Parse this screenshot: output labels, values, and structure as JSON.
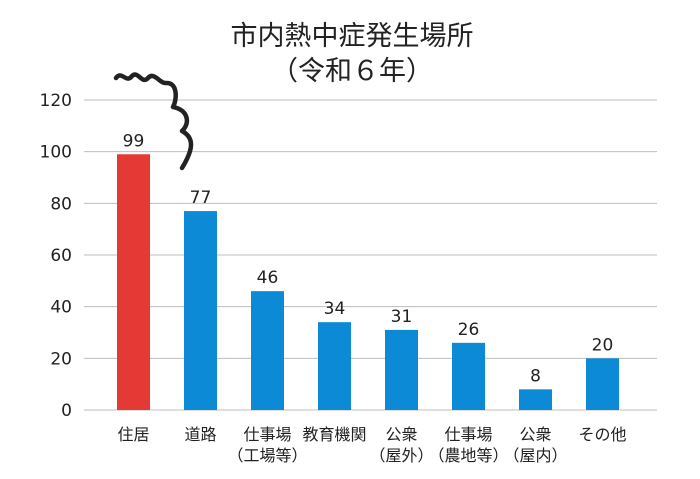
{
  "chart_data": {
    "type": "bar",
    "title": "市内熱中症発生場所",
    "subtitle": "（令和６年）",
    "categories": [
      [
        "住居"
      ],
      [
        "道路"
      ],
      [
        "仕事場",
        "（工場等）"
      ],
      [
        "教育機関"
      ],
      [
        "公衆",
        "（屋外）"
      ],
      [
        "仕事場",
        "（農地等）"
      ],
      [
        "公衆",
        "（屋内）"
      ],
      [
        "その他"
      ]
    ],
    "values": [
      99,
      77,
      46,
      34,
      31,
      26,
      8,
      20
    ],
    "colors": [
      "#e53935",
      "#0d8ad6",
      "#0d8ad6",
      "#0d8ad6",
      "#0d8ad6",
      "#0d8ad6",
      "#0d8ad6",
      "#0d8ad6"
    ],
    "ylim": [
      0,
      120
    ],
    "yticks": [
      0,
      20,
      40,
      60,
      80,
      100,
      120
    ],
    "grid": true,
    "gridColor": "#bdbdbd",
    "decoration": "hand-drawn-squiggle"
  }
}
